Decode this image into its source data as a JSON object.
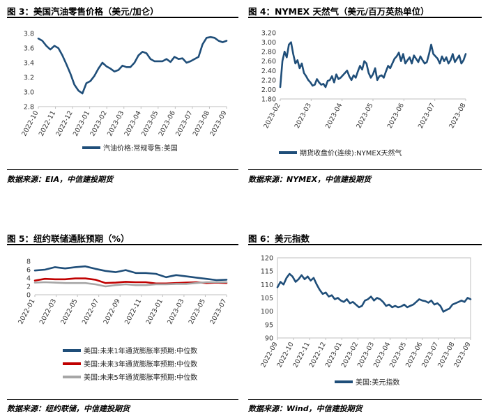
{
  "panels": [
    {
      "title": "图 3：美国汽油零售价格（美元/加仑）",
      "source": "数据来源：EIA，中信建投期货",
      "chart_data": {
        "type": "line",
        "x_ticks": [
          "2022-10",
          "2022-11",
          "2022-12",
          "2023-01",
          "2023-02",
          "2023-03",
          "2023-04",
          "2023-05",
          "2023-06",
          "2023-07",
          "2023-08",
          "2023-09"
        ],
        "ylim": [
          2.8,
          3.8
        ],
        "y_ticks": [
          "3.8",
          "3.6",
          "3.4",
          "3.2",
          "3.0",
          "2.8"
        ],
        "series": [
          {
            "name": "汽油价格:常规零售:美国",
            "color": "#1f4e79",
            "values": [
              3.73,
              3.7,
              3.63,
              3.58,
              3.63,
              3.6,
              3.5,
              3.38,
              3.25,
              3.1,
              3.02,
              2.98,
              3.12,
              3.15,
              3.22,
              3.32,
              3.4,
              3.35,
              3.32,
              3.28,
              3.3,
              3.36,
              3.34,
              3.34,
              3.4,
              3.5,
              3.55,
              3.53,
              3.45,
              3.42,
              3.42,
              3.42,
              3.45,
              3.41,
              3.48,
              3.45,
              3.46,
              3.4,
              3.42,
              3.45,
              3.48,
              3.65,
              3.74,
              3.75,
              3.74,
              3.7,
              3.68,
              3.7
            ]
          }
        ]
      }
    },
    {
      "title": "图 4：NYMEX 天然气（美元/百万英热单位）",
      "source": "数据来源：NYMEX，中信建投期货",
      "chart_data": {
        "type": "line",
        "x_ticks": [
          "2023-02",
          "2023-03",
          "2023-04",
          "2023-05",
          "2023-06",
          "2023-07",
          "2023-08"
        ],
        "ylim": [
          1.8,
          3.2
        ],
        "y_ticks": [
          "3.20",
          "3.00",
          "2.80",
          "2.60",
          "2.40",
          "2.20",
          "2.00",
          "1.80"
        ],
        "series": [
          {
            "name": "期货收盘价(连续):NYMEX天然气",
            "color": "#1f4e79",
            "values": [
              2.05,
              2.6,
              2.8,
              2.68,
              2.95,
              3.0,
              2.75,
              2.55,
              2.62,
              2.45,
              2.55,
              2.35,
              2.28,
              2.2,
              2.15,
              2.08,
              2.1,
              2.22,
              2.15,
              2.1,
              2.12,
              2.05,
              2.18,
              2.2,
              2.28,
              2.15,
              2.32,
              2.22,
              2.25,
              2.3,
              2.35,
              2.4,
              2.28,
              2.2,
              2.3,
              2.25,
              2.38,
              2.5,
              2.42,
              2.6,
              2.55,
              2.35,
              2.25,
              2.32,
              2.45,
              2.2,
              2.28,
              2.3,
              2.25,
              2.38,
              2.5,
              2.45,
              2.55,
              2.65,
              2.7,
              2.78,
              2.6,
              2.75,
              2.55,
              2.62,
              2.68,
              2.55,
              2.72,
              2.65,
              2.58,
              2.7,
              2.62,
              2.55,
              2.58,
              2.75,
              2.95,
              2.75,
              2.7,
              2.65,
              2.55,
              2.7,
              2.6,
              2.68,
              2.55,
              2.62,
              2.75,
              2.58,
              2.65,
              2.72,
              2.55,
              2.62,
              2.75
            ]
          }
        ]
      }
    },
    {
      "title": "图 5：纽约联储通胀预期（%）",
      "source": "数据来源：纽约联储，中信建投期货",
      "chart_data": {
        "type": "line",
        "x_ticks": [
          "2022-01",
          "2022-03",
          "2022-05",
          "2022-07",
          "2022-09",
          "2022-11",
          "2023-01",
          "2023-03",
          "2023-05",
          "2023-07"
        ],
        "ylim": [
          0,
          8
        ],
        "y_ticks": [
          "8",
          "6",
          "4",
          "2",
          "0"
        ],
        "series": [
          {
            "name": "美国:未来1年通货膨胀率预期:中位数",
            "color": "#1f4e79",
            "values": [
              5.8,
              6.0,
              6.6,
              6.3,
              6.6,
              6.8,
              6.2,
              5.7,
              5.4,
              5.9,
              5.2,
              5.2,
              5.0,
              4.2,
              4.7,
              4.4,
              4.1,
              3.8,
              3.5,
              3.6
            ]
          },
          {
            "name": "美国:未来3年通货膨胀率预期:中位数",
            "color": "#c00000",
            "values": [
              3.4,
              3.8,
              3.7,
              3.7,
              3.9,
              3.9,
              3.6,
              2.8,
              2.9,
              3.1,
              3.0,
              3.0,
              2.7,
              2.7,
              2.8,
              2.9,
              3.0,
              2.8,
              2.9,
              2.8
            ]
          },
          {
            "name": "美国:未来5年通货膨胀率预期:中位数",
            "color": "#a6a6a6",
            "values": [
              2.9,
              3.0,
              2.9,
              2.8,
              2.8,
              2.8,
              2.5,
              2.0,
              2.3,
              2.5,
              2.3,
              2.3,
              2.5,
              2.5,
              2.6,
              2.6,
              2.8,
              3.0,
              3.0,
              3.0
            ]
          }
        ]
      }
    },
    {
      "title": "图 6：美元指数",
      "source": "数据来源：Wind，中信建投期货",
      "chart_data": {
        "type": "line",
        "x_ticks": [
          "2022-09",
          "2022-10",
          "2022-11",
          "2022-12",
          "2023-01",
          "2023-02",
          "2023-03",
          "2023-04",
          "2023-05",
          "2023-06",
          "2023-07",
          "2023-08",
          "2023-09"
        ],
        "ylim": [
          90,
          120
        ],
        "y_ticks": [
          "120",
          "115",
          "110",
          "105",
          "100",
          "95",
          "90"
        ],
        "series": [
          {
            "name": "美国:美元指数",
            "color": "#1f4e79",
            "values": [
              109,
              111,
              110,
              112.5,
              114,
              113,
              111,
              112,
              113.5,
              112,
              113,
              111.5,
              112.5,
              110,
              108,
              106.5,
              107,
              105.5,
              106,
              104.5,
              105,
              104,
              103.5,
              104.5,
              103,
              103.5,
              102.5,
              101.5,
              102,
              104,
              104.5,
              105.5,
              104,
              105,
              104.5,
              103.5,
              102,
              102.5,
              101.5,
              102,
              101.5,
              101.8,
              102.5,
              101.5,
              102,
              102.5,
              103.5,
              104.5,
              104,
              103.8,
              103.2,
              104,
              102.5,
              103,
              102,
              99.8,
              100.5,
              101,
              102.5,
              103,
              103.5,
              104,
              103.5,
              105,
              104.5
            ]
          }
        ]
      }
    }
  ]
}
